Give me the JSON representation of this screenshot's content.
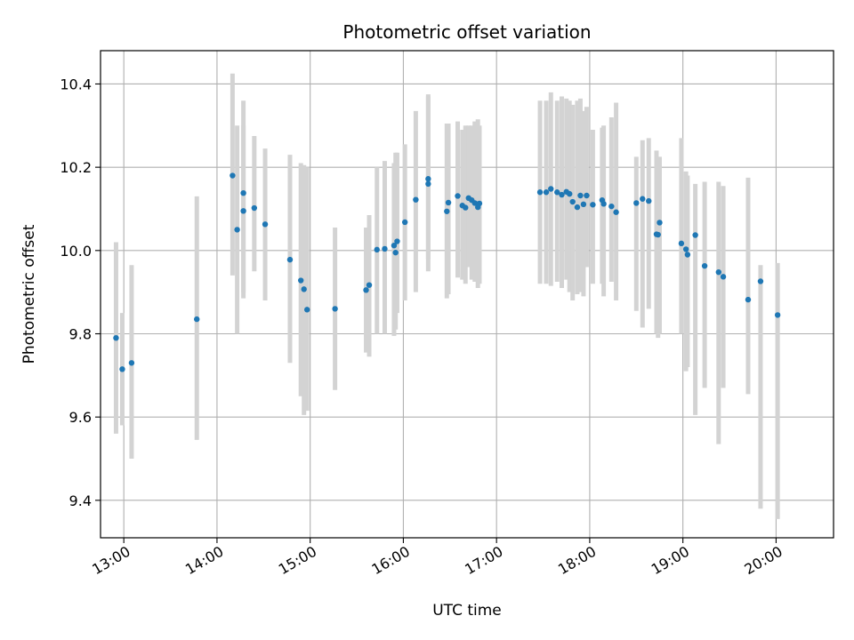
{
  "chart_data": {
    "type": "scatter",
    "title": "Photometric offset variation",
    "xlabel": "UTC time",
    "ylabel": "Photometric offset",
    "x_unit": "UTC time (HH:MM)",
    "xlim": [
      "12:45",
      "20:37"
    ],
    "ylim": [
      9.31,
      10.48
    ],
    "grid": true,
    "x_ticks": [
      "13:00",
      "14:00",
      "15:00",
      "16:00",
      "17:00",
      "18:00",
      "19:00",
      "20:00"
    ],
    "y_ticks": [
      "9.4",
      "9.6",
      "9.8",
      "10.0",
      "10.2",
      "10.4"
    ],
    "colors": {
      "marker": "#1f77b4",
      "errorbar": "#d3d3d3",
      "grid": "#b0b0b0"
    },
    "series": [
      {
        "x": [
          "12:55",
          "12:59",
          "13:05",
          "13:47",
          "14:10",
          "14:13",
          "14:17",
          "14:17",
          "14:24",
          "14:31",
          "14:47",
          "14:54",
          "14:56",
          "14:58",
          "15:16",
          "15:36",
          "15:38",
          "15:43",
          "15:48",
          "15:54",
          "15:55",
          "15:56",
          "16:01",
          "16:08",
          "16:16",
          "16:16",
          "16:28",
          "16:29",
          "16:35",
          "16:38",
          "16:40",
          "16:42",
          "16:44",
          "16:46",
          "16:48",
          "16:49",
          "17:28",
          "17:32",
          "17:35",
          "17:39",
          "17:42",
          "17:45",
          "17:47",
          "17:49",
          "17:52",
          "17:54",
          "17:56",
          "17:58",
          "18:02",
          "18:08",
          "18:09",
          "18:14",
          "18:17",
          "18:30",
          "18:34",
          "18:38",
          "18:43",
          "18:44",
          "18:45",
          "18:59",
          "19:02",
          "19:03",
          "19:08",
          "19:14",
          "19:23",
          "19:26",
          "19:42",
          "19:50",
          "20:01"
        ],
        "y": [
          9.79,
          9.715,
          9.73,
          9.835,
          10.18,
          10.05,
          10.095,
          10.138,
          10.102,
          10.063,
          9.978,
          9.928,
          9.907,
          9.858,
          9.86,
          9.905,
          9.917,
          10.002,
          10.004,
          10.012,
          9.995,
          10.022,
          10.068,
          10.122,
          10.16,
          10.172,
          10.094,
          10.115,
          10.131,
          10.108,
          10.103,
          10.126,
          10.121,
          10.114,
          10.104,
          10.113,
          10.14,
          10.14,
          10.148,
          10.14,
          10.134,
          10.141,
          10.136,
          10.117,
          10.104,
          10.132,
          10.111,
          10.132,
          10.11,
          10.121,
          10.112,
          10.106,
          10.092,
          10.114,
          10.124,
          10.119,
          10.039,
          10.038,
          10.067,
          10.017,
          10.003,
          9.99,
          10.037,
          9.963,
          9.948,
          9.937,
          9.882,
          9.926,
          9.845
        ],
        "yerr_low": [
          9.56,
          9.58,
          9.5,
          9.545,
          9.94,
          9.8,
          9.885,
          9.9,
          9.95,
          9.88,
          9.73,
          9.65,
          9.605,
          9.615,
          9.665,
          9.755,
          9.745,
          9.8,
          9.8,
          9.795,
          9.81,
          9.85,
          9.88,
          9.9,
          9.95,
          9.98,
          9.885,
          9.895,
          9.935,
          9.93,
          9.92,
          9.96,
          9.93,
          9.925,
          9.91,
          9.92,
          9.92,
          9.92,
          9.915,
          9.925,
          9.91,
          9.93,
          9.9,
          9.88,
          9.895,
          9.9,
          9.89,
          9.96,
          9.92,
          9.92,
          9.89,
          9.925,
          9.88,
          9.855,
          9.815,
          9.86,
          9.8,
          9.79,
          9.8,
          9.8,
          9.71,
          9.72,
          9.605,
          9.67,
          9.535,
          9.67,
          9.655,
          9.38,
          9.355
        ],
        "yerr_high": [
          10.02,
          9.85,
          9.965,
          10.13,
          10.425,
          10.3,
          10.36,
          10.3,
          10.275,
          10.245,
          10.23,
          10.21,
          10.205,
          10.2,
          10.055,
          10.055,
          10.085,
          10.2,
          10.215,
          10.21,
          10.235,
          10.235,
          10.255,
          10.335,
          10.375,
          10.37,
          10.305,
          10.305,
          10.31,
          10.29,
          10.3,
          10.3,
          10.3,
          10.31,
          10.315,
          10.3,
          10.36,
          10.36,
          10.38,
          10.36,
          10.37,
          10.365,
          10.36,
          10.35,
          10.36,
          10.365,
          10.335,
          10.345,
          10.29,
          10.295,
          10.3,
          10.32,
          10.355,
          10.225,
          10.265,
          10.27,
          10.24,
          10.215,
          10.225,
          10.27,
          10.19,
          10.18,
          10.16,
          10.165,
          10.165,
          10.155,
          10.175,
          9.965,
          9.97
        ]
      }
    ]
  }
}
